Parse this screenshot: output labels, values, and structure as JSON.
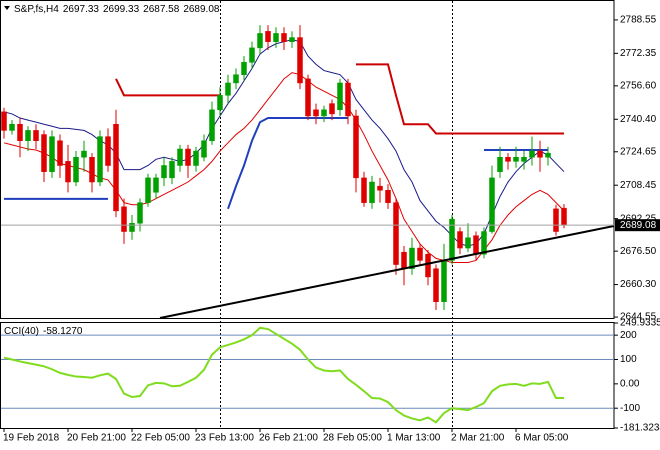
{
  "chart_data": [
    {
      "type": "candlestick",
      "symbol": "S&P,fs,H4",
      "categories": [
        "19 Feb 2018",
        null,
        null,
        null,
        null,
        null,
        null,
        null,
        "20 Feb 21:00",
        null,
        null,
        null,
        null,
        null,
        null,
        null,
        "22 Feb 05:00",
        null,
        null,
        null,
        null,
        null,
        null,
        null,
        "23 Feb 13:00",
        null,
        null,
        null,
        null,
        null,
        null,
        null,
        "26 Feb 21:00",
        null,
        null,
        null,
        null,
        null,
        null,
        null,
        "28 Feb 05:00",
        null,
        null,
        null,
        null,
        null,
        null,
        null,
        "1 Mar 13:00",
        null,
        null,
        null,
        null,
        null,
        null,
        null,
        "2 Mar 21:00",
        null,
        null,
        null,
        null,
        null,
        null,
        null,
        "6 Mar 05:00",
        null,
        null,
        null,
        null,
        null,
        null
      ],
      "open": [
        2744,
        2735,
        2738,
        2730,
        2735,
        2733,
        2715,
        2730,
        2720,
        2710,
        2722,
        2722,
        2710,
        2732,
        2738,
        2698,
        2686,
        2690,
        2700,
        2705,
        2712,
        2712,
        2718,
        2726,
        2718,
        2722,
        2730,
        2745,
        2752,
        2758,
        2762,
        2768,
        2775,
        2783,
        2778,
        2782,
        2778,
        2780,
        2760,
        2745,
        2742,
        2748,
        2745,
        2758,
        2742,
        2712,
        2700,
        2708,
        2706,
        2700,
        2676,
        2668,
        2678,
        2675,
        2668,
        2652,
        2672,
        2686,
        2678,
        2684,
        2675,
        2686,
        2715,
        2722,
        2720,
        2720,
        2722,
        2725,
        2722,
        2697,
        2697.33
      ],
      "high": [
        2746,
        2740,
        2741,
        2737,
        2738,
        2735,
        2735,
        2733,
        2728,
        2725,
        2730,
        2724,
        2735,
        2736,
        2745,
        2702,
        2694,
        2702,
        2714,
        2714,
        2722,
        2722,
        2728,
        2728,
        2727,
        2733,
        2749,
        2756,
        2762,
        2765,
        2771,
        2778,
        2786,
        2786,
        2785,
        2785,
        2783,
        2786,
        2762,
        2748,
        2747,
        2750,
        2760,
        2760,
        2745,
        2715,
        2713,
        2712,
        2709,
        2702,
        2679,
        2683,
        2680,
        2677,
        2670,
        2680,
        2694,
        2688,
        2690,
        2686,
        2688,
        2718,
        2727,
        2724,
        2727,
        2725,
        2732,
        2730,
        2727,
        2699,
        2699.33
      ],
      "low": [
        2731,
        2733,
        2722,
        2725,
        2726,
        2710,
        2712,
        2712,
        2705,
        2708,
        2715,
        2705,
        2708,
        2715,
        2693,
        2680,
        2682,
        2686,
        2698,
        2702,
        2708,
        2709,
        2715,
        2712,
        2715,
        2720,
        2728,
        2742,
        2748,
        2755,
        2759,
        2765,
        2772,
        2774,
        2775,
        2774,
        2775,
        2755,
        2740,
        2738,
        2739,
        2740,
        2742,
        2738,
        2705,
        2698,
        2697,
        2700,
        2697,
        2665,
        2660,
        2665,
        2670,
        2660,
        2648,
        2648,
        2670,
        2675,
        2676,
        2672,
        2673,
        2685,
        2712,
        2716,
        2717,
        2716,
        2718,
        2715,
        2718,
        2684,
        2687.58
      ],
      "close": [
        2735,
        2738,
        2730,
        2735,
        2730,
        2715,
        2732,
        2718,
        2710,
        2722,
        2725,
        2710,
        2732,
        2718,
        2696,
        2686,
        2690,
        2700,
        2712,
        2712,
        2718,
        2720,
        2726,
        2718,
        2725,
        2730,
        2745,
        2752,
        2758,
        2762,
        2768,
        2775,
        2782,
        2778,
        2782,
        2778,
        2780,
        2758,
        2742,
        2742,
        2745,
        2743,
        2758,
        2742,
        2712,
        2700,
        2710,
        2706,
        2700,
        2670,
        2668,
        2678,
        2672,
        2664,
        2652,
        2672,
        2692,
        2678,
        2683,
        2675,
        2686,
        2712,
        2722,
        2720,
        2722,
        2722,
        2725,
        2722,
        2724,
        2686,
        2689.08
      ],
      "up_color": "#00a000",
      "down_color": "#e00000",
      "ylim": [
        2644.1,
        2798.2
      ],
      "yticks": [
        2788.55,
        2772.35,
        {
          "value": 2756.6,
          "label": "2756.60"
        },
        {
          "value": 2740.4,
          "label": "2740.40"
        },
        2724.65,
        2708.45,
        2692.25,
        {
          "value": 2676.5,
          "label": "2676.50"
        },
        {
          "value": 2660.3,
          "label": "2660.30"
        },
        2644.55
      ],
      "overlays": [
        {
          "color": "#1a1a8c",
          "width": 1,
          "values": [
            2744,
            2743,
            2741,
            2740,
            2739,
            2738,
            2737,
            2736,
            2736,
            2735.5,
            2735,
            2733,
            2730,
            2728,
            2724,
            2716,
            2716,
            2716,
            2718,
            2721,
            2722,
            2721,
            2720,
            2721,
            2724,
            2728,
            2736,
            2742,
            2748,
            2753,
            2759,
            2765,
            2772,
            2775,
            2777,
            2778,
            2779,
            2778,
            2771,
            2767,
            2764,
            2763,
            2762,
            2758,
            2750,
            2745,
            2740,
            2736,
            2731,
            2725,
            2716,
            2710,
            2701,
            2696,
            2691,
            2688,
            2684,
            2680,
            2679,
            2680,
            2685,
            2694,
            2703,
            2710,
            2715,
            2719,
            2722,
            2725,
            2723,
            2719,
            2715
          ]
        },
        {
          "color": "#e00000",
          "width": 1,
          "values": [
            2729,
            2728,
            2727,
            2726,
            2725.5,
            2724,
            2722,
            2719,
            2718,
            2717,
            2716,
            2714,
            2712,
            2711,
            2706,
            2700,
            2699,
            2699,
            2700,
            2702,
            2704,
            2706,
            2708,
            2710,
            2713,
            2716,
            2720,
            2725,
            2729,
            2733,
            2736,
            2740,
            2745,
            2750,
            2755,
            2760,
            2763,
            2762,
            2759,
            2756,
            2754,
            2752,
            2750,
            2746,
            2740,
            2733,
            2725,
            2718,
            2711,
            2702,
            2692,
            2686,
            2680,
            2676,
            2673,
            2672,
            2671,
            2671,
            2671,
            2672,
            2677,
            2682,
            2689,
            2694,
            2698,
            2701,
            2704,
            2706,
            2704,
            2700,
            2696
          ]
        },
        {
          "color": "#cc0000",
          "width": 2,
          "values": [
            null,
            null,
            null,
            null,
            null,
            null,
            null,
            null,
            null,
            null,
            null,
            null,
            null,
            null,
            2760,
            2752,
            2752,
            2752,
            2752,
            2752,
            2752,
            2752,
            2752,
            2752,
            2752,
            2752,
            2752,
            2752,
            null,
            null,
            null,
            null,
            null,
            null,
            null,
            null,
            null,
            null,
            null,
            null,
            null,
            null,
            null,
            null,
            2767,
            2767,
            2767,
            2767,
            2767,
            2752,
            2738,
            2738,
            2738,
            2738,
            2733.5,
            2733.5,
            2733.5,
            2733.5,
            2733.5,
            2733.5,
            2733.5,
            2733.5,
            2733.5,
            2733.5,
            2733.5,
            2733.5,
            2733.5,
            2733.5,
            2733.5,
            2733.5,
            2733.5
          ]
        },
        {
          "color": "#1f3fbf",
          "width": 2,
          "values": [
            2701.8,
            2701.8,
            2701.8,
            2701.8,
            2701.8,
            2701.8,
            2701.8,
            2701.8,
            2701.8,
            2701.8,
            2701.8,
            2701.8,
            2701.8,
            2701.8,
            null,
            null,
            null,
            null,
            null,
            null,
            null,
            null,
            null,
            null,
            null,
            null,
            null,
            null,
            2697,
            2708,
            2718,
            2730,
            2739,
            2741,
            2741,
            2741,
            2741,
            2741,
            2741,
            2741,
            2741,
            2741,
            2741,
            2741,
            null,
            null,
            null,
            null,
            null,
            null,
            null,
            null,
            null,
            null,
            null,
            null,
            null,
            null,
            null,
            null,
            2725.5,
            2725.5,
            2725.5,
            2725.5,
            2725.5,
            2725.5,
            2725.5,
            2725.5,
            2725.5,
            null,
            null
          ]
        }
      ],
      "trendline": {
        "x": [
          19.5,
          76.25
        ],
        "values": [
          2644.1,
          2688.7
        ],
        "color": "#000000"
      }
    },
    {
      "type": "line",
      "title": "CCI(40)",
      "values": [
        108,
        100,
        92,
        85,
        79,
        72,
        60,
        45,
        37,
        30,
        28,
        25,
        35,
        42,
        20,
        -40,
        -54,
        -50,
        -6,
        4,
        2,
        -10,
        -8,
        8,
        25,
        58,
        120,
        150,
        160,
        170,
        183,
        200,
        230,
        225,
        205,
        185,
        165,
        140,
        100,
        67,
        55,
        52,
        55,
        20,
        -4,
        -30,
        -58,
        -60,
        -75,
        -108,
        -130,
        -142,
        -150,
        -138,
        -158,
        -120,
        -100,
        -104,
        -108,
        -95,
        -79,
        -30,
        -8,
        -2,
        0,
        -8,
        2,
        0,
        8,
        -58,
        -58.127
      ],
      "value_labels": [
        null,
        null,
        null,
        null,
        null,
        null,
        null,
        null,
        null,
        null,
        null,
        null,
        null,
        null,
        null,
        null,
        null,
        null,
        null,
        null,
        null,
        null,
        null,
        null,
        null,
        null,
        null,
        null,
        null,
        null,
        null,
        null,
        null,
        null,
        null,
        null,
        null,
        null,
        null,
        null,
        null,
        null,
        null,
        null,
        null,
        null,
        null,
        null,
        null,
        null,
        null,
        null,
        null,
        null,
        null,
        null,
        null,
        null,
        null,
        null,
        null,
        null,
        null,
        null,
        null,
        null,
        null,
        null,
        null,
        null,
        "-58.1270"
      ],
      "color": "#7fdc1e",
      "ylim": [
        -181.3234,
        249.9335
      ],
      "yticks": [
        249.9335,
        200,
        100,
        {
          "value": 0,
          "label": "0.00"
        },
        -100,
        -181.3234
      ],
      "levels": [
        200,
        100,
        -100
      ],
      "level_color": "#6b8cbd"
    }
  ]
}
